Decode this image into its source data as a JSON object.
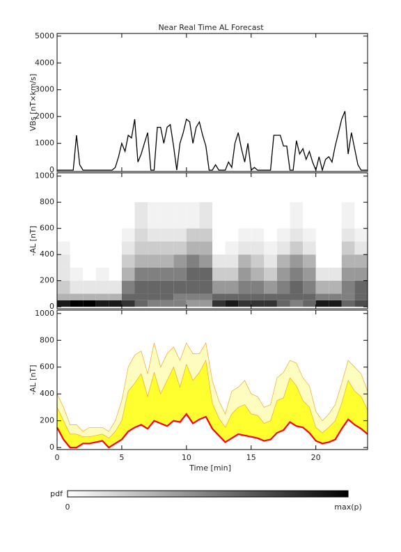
{
  "chart_data": [
    {
      "type": "line",
      "title": "Near Real Time AL Forecast",
      "ylabel": "VBs [nT×km/s]",
      "color": "#000000",
      "xlim": [
        0,
        24
      ],
      "xticks": [
        0,
        5,
        10,
        15,
        20
      ],
      "ylim": [
        -50,
        5100
      ],
      "yticks": [
        0,
        1000,
        2000,
        3000,
        4000,
        5000
      ],
      "xtick_labels": false,
      "x": [
        0,
        0.25,
        0.5,
        0.75,
        1,
        1.25,
        1.5,
        1.75,
        2,
        2.25,
        2.5,
        2.75,
        3,
        3.25,
        3.5,
        3.75,
        4,
        4.25,
        4.5,
        4.75,
        5,
        5.25,
        5.5,
        5.75,
        6,
        6.25,
        6.5,
        6.75,
        7,
        7.25,
        7.5,
        7.75,
        8,
        8.25,
        8.5,
        8.75,
        9,
        9.25,
        9.5,
        9.75,
        10,
        10.25,
        10.5,
        10.75,
        11,
        11.25,
        11.5,
        11.75,
        12,
        12.25,
        12.5,
        12.75,
        13,
        13.25,
        13.5,
        13.75,
        14,
        14.25,
        14.5,
        14.75,
        15,
        15.25,
        15.5,
        15.75,
        16,
        16.25,
        16.5,
        16.75,
        17,
        17.25,
        17.5,
        17.75,
        18,
        18.25,
        18.5,
        18.75,
        19,
        19.25,
        19.5,
        19.75,
        20,
        20.25,
        20.5,
        20.75,
        21,
        21.25,
        21.5,
        21.75,
        22,
        22.25,
        22.5,
        22.75,
        23,
        23.25,
        23.5,
        23.75,
        24
      ],
      "values": [
        0,
        0,
        0,
        0,
        0,
        0,
        1300,
        200,
        0,
        0,
        0,
        0,
        0,
        0,
        0,
        0,
        0,
        0,
        100,
        500,
        1000,
        700,
        1300,
        1200,
        1900,
        300,
        600,
        1000,
        1400,
        0,
        0,
        1600,
        1600,
        1000,
        1600,
        1700,
        900,
        0,
        1000,
        1400,
        1900,
        1800,
        1000,
        1600,
        1800,
        1300,
        900,
        0,
        0,
        200,
        0,
        0,
        0,
        300,
        100,
        1000,
        1400,
        800,
        300,
        1000,
        0,
        100,
        0,
        0,
        0,
        0,
        0,
        1300,
        1300,
        1300,
        900,
        900,
        0,
        0,
        1100,
        600,
        800,
        400,
        700,
        300,
        0,
        500,
        0,
        400,
        500,
        300,
        900,
        1400,
        1900,
        2200,
        600,
        1400,
        800,
        200,
        0,
        0,
        0
      ]
    },
    {
      "type": "heatmap",
      "ylabel": "-AL [nT]",
      "colormap": [
        "#ffffff",
        "#000000"
      ],
      "xlim": [
        0,
        24
      ],
      "xticks": [
        0,
        5,
        10,
        15,
        20
      ],
      "ylim": [
        -15,
        1025
      ],
      "yticks": [
        0,
        200,
        400,
        600,
        800,
        1000
      ],
      "xtick_labels": false,
      "xbins": [
        0,
        1,
        2,
        3,
        4,
        5,
        6,
        7,
        8,
        9,
        10,
        11,
        12,
        13,
        14,
        15,
        16,
        17,
        18,
        19,
        20,
        21,
        22,
        23,
        24
      ],
      "ybins": [
        0,
        50,
        100,
        200,
        300,
        400,
        500,
        600,
        800
      ],
      "values": [
        [
          0.9,
          1,
          1,
          0.9,
          0.9,
          0.8,
          0.6,
          0.5,
          0.5,
          0.5,
          0.4,
          0.4,
          0.8,
          0.9,
          0.8,
          0.8,
          0.8,
          0.6,
          0.5,
          0.6,
          0.9,
          0.9,
          0.6,
          0.7
        ],
        [
          0.3,
          0.3,
          0.3,
          0.3,
          0.3,
          0.6,
          0.6,
          0.6,
          0.6,
          0.5,
          0.5,
          0.5,
          0.6,
          0.6,
          0.6,
          0.6,
          0.6,
          0.6,
          0.6,
          0.6,
          0.5,
          0.5,
          0.5,
          0.6
        ],
        [
          0.2,
          0.1,
          0.1,
          0.1,
          0.1,
          0.5,
          0.6,
          0.6,
          0.6,
          0.6,
          0.6,
          0.6,
          0.4,
          0.4,
          0.5,
          0.5,
          0.4,
          0.5,
          0.6,
          0.5,
          0.3,
          0.3,
          0.5,
          0.6
        ],
        [
          0.1,
          0.05,
          0,
          0.05,
          0,
          0.3,
          0.5,
          0.5,
          0.5,
          0.5,
          0.6,
          0.6,
          0.2,
          0.2,
          0.4,
          0.3,
          0.2,
          0.4,
          0.5,
          0.4,
          0.1,
          0.1,
          0.4,
          0.4
        ],
        [
          0.1,
          0,
          0,
          0,
          0,
          0.2,
          0.3,
          0.3,
          0.3,
          0.4,
          0.5,
          0.4,
          0.1,
          0.1,
          0.3,
          0.2,
          0.1,
          0.3,
          0.4,
          0.3,
          0,
          0,
          0.3,
          0.3
        ],
        [
          0.05,
          0,
          0,
          0,
          0,
          0.1,
          0.2,
          0.2,
          0.2,
          0.2,
          0.3,
          0.3,
          0,
          0.05,
          0.1,
          0.1,
          0.05,
          0.1,
          0.2,
          0.1,
          0,
          0,
          0.2,
          0.1
        ],
        [
          0,
          0,
          0,
          0,
          0,
          0.05,
          0.15,
          0.1,
          0.1,
          0.1,
          0.2,
          0.2,
          0,
          0,
          0.05,
          0.05,
          0,
          0.05,
          0.1,
          0.05,
          0,
          0,
          0.1,
          0.05
        ],
        [
          0,
          0,
          0,
          0,
          0,
          0,
          0.1,
          0.05,
          0.05,
          0.05,
          0.05,
          0.1,
          0,
          0,
          0,
          0,
          0,
          0,
          0.05,
          0,
          0,
          0,
          0.05,
          0
        ]
      ]
    },
    {
      "type": "band",
      "ylabel": "-AL [nT]",
      "xlabel": "Time [min]",
      "edge_color": "#f0a830",
      "xlim": [
        0,
        24
      ],
      "xticks": [
        0,
        5,
        10,
        15,
        20
      ],
      "ylim": [
        -15,
        1025
      ],
      "yticks": [
        0,
        200,
        400,
        600,
        800,
        1000
      ],
      "xtick_labels": true,
      "x": [
        0,
        0.5,
        1,
        1.5,
        2,
        2.5,
        3,
        3.5,
        4,
        4.5,
        5,
        5.5,
        6,
        6.5,
        7,
        7.5,
        8,
        8.5,
        9,
        9.5,
        10,
        10.5,
        11,
        11.5,
        12,
        12.5,
        13,
        13.5,
        14,
        14.5,
        15,
        15.5,
        16,
        16.5,
        17,
        17.5,
        18,
        18.5,
        19,
        19.5,
        20,
        20.5,
        21,
        21.5,
        22,
        22.5,
        23,
        23.5,
        24
      ],
      "series": [
        {
          "color": "#fffcc0",
          "values": [
            400,
            300,
            170,
            170,
            120,
            150,
            150,
            150,
            120,
            200,
            350,
            600,
            690,
            720,
            550,
            780,
            600,
            700,
            750,
            650,
            780,
            700,
            700,
            780,
            500,
            350,
            250,
            420,
            450,
            500,
            400,
            380,
            300,
            320,
            520,
            560,
            650,
            630,
            520,
            460,
            270,
            200,
            250,
            320,
            480,
            650,
            600,
            550,
            420
          ]
        },
        {
          "color": "#ffff30",
          "values": [
            300,
            200,
            100,
            100,
            80,
            80,
            90,
            100,
            70,
            120,
            200,
            420,
            480,
            550,
            380,
            560,
            400,
            500,
            600,
            450,
            620,
            500,
            560,
            650,
            330,
            220,
            150,
            250,
            300,
            320,
            250,
            240,
            180,
            200,
            350,
            370,
            520,
            460,
            350,
            300,
            150,
            110,
            150,
            200,
            330,
            500,
            420,
            380,
            280
          ]
        },
        {
          "color": "#ff0000",
          "values": [
            150,
            60,
            0,
            0,
            30,
            30,
            40,
            50,
            0,
            30,
            60,
            120,
            150,
            170,
            140,
            200,
            180,
            160,
            200,
            190,
            250,
            180,
            210,
            230,
            140,
            90,
            40,
            70,
            100,
            90,
            80,
            70,
            50,
            60,
            110,
            130,
            190,
            160,
            150,
            110,
            50,
            30,
            40,
            60,
            140,
            210,
            170,
            140,
            100
          ]
        }
      ]
    }
  ],
  "colorbar": {
    "label": "pdf",
    "min_label": "0",
    "max_label": "max(p)"
  }
}
